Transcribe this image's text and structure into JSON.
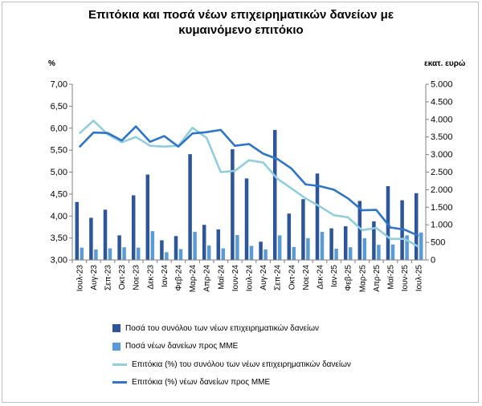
{
  "title_lines": [
    "Επιτόκια και ποσά νέων επιχειρηματικών δανείων με",
    "κυμαινόμενο επιτόκιο"
  ],
  "chart_data": {
    "type": "bar",
    "title": "Επιτόκια και ποσά νέων επιχειρηματικών δανείων με κυμαινόμενο επιτόκιο",
    "left_axis": {
      "unit_label": "%",
      "range": [
        3.0,
        7.0
      ],
      "ticks": [
        "7,00",
        "6,50",
        "6,00",
        "5,50",
        "5,00",
        "4,50",
        "4,00",
        "3,50",
        "3,00"
      ],
      "tick_values": [
        7.0,
        6.5,
        6.0,
        5.5,
        5.0,
        4.5,
        4.0,
        3.5,
        3.0
      ]
    },
    "right_axis": {
      "unit_label": "εκατ. ευρώ",
      "range": [
        0,
        5000
      ],
      "ticks": [
        "5.000",
        "4.500",
        "4.000",
        "3.500",
        "3.000",
        "2.500",
        "2.000",
        "1.500",
        "1.000",
        "500",
        "0"
      ],
      "tick_values": [
        5000,
        4500,
        4000,
        3500,
        3000,
        2500,
        2000,
        1500,
        1000,
        500,
        0
      ]
    },
    "categories": [
      "Ιουλ-23",
      "Αυγ-23",
      "Σεπ-23",
      "Οκτ-23",
      "Νοε-23",
      "Δεκ-23",
      "Ιαν-24",
      "Φεβ-24",
      "Μαρ-24",
      "Απρ-24",
      "Μαϊ-24",
      "Ιουν-24",
      "Ιουλ-24",
      "Αυγ-24",
      "Σεπ-24",
      "Οκτ-24",
      "Νοε-24",
      "Δεκ-24",
      "Ιαν-25",
      "Φεβ-25",
      "Μαρ-25",
      "Απρ-25",
      "Μαϊ-25",
      "Ιουν-25",
      "Ιουλ-25"
    ],
    "x_tick_labels": [
      "Ιουλ-23",
      "Αυγ-23",
      "Σεπ-23",
      "Οκτ-23",
      "Νοε-23",
      "Δεκ-23",
      "Ιαν-24",
      "Φεβ-24",
      "Μαρ-24",
      "Απρ-24",
      "Μαϊ-24",
      "Ιουν-24",
      "Ιουλ-24",
      "Αυγ-24",
      "Σεπ-24",
      "Οκτ-24",
      "Νοε-24",
      "Δεκ-24",
      "Ιαν-25",
      "Φεβ-25",
      "Μαρ-25",
      "Απρ-25",
      "Μαϊ-25",
      "Ιουν-25",
      "Ιουλ-25"
    ],
    "series": [
      {
        "name": "Ποσά του συνόλου των νέων επιχειρηματικών δανείων",
        "kind": "bar",
        "axis": "right",
        "color": "#2e5597",
        "values": [
          1650,
          1200,
          1430,
          700,
          1840,
          2430,
          560,
          680,
          3010,
          1000,
          870,
          3150,
          2320,
          520,
          3700,
          1320,
          1730,
          2460,
          900,
          960,
          1680,
          1100,
          2100,
          1700,
          1900
        ]
      },
      {
        "name": "Ποσά νέων δανείων προς ΜΜΕ",
        "kind": "bar",
        "axis": "right",
        "color": "#5b9bd5",
        "values": [
          350,
          300,
          330,
          360,
          350,
          820,
          220,
          310,
          800,
          410,
          330,
          710,
          400,
          300,
          700,
          370,
          620,
          800,
          320,
          360,
          620,
          430,
          440,
          700,
          780
        ]
      },
      {
        "name": "Επιτόκια (%) του συνόλου των νέων επιχειρηματικών δανείων",
        "kind": "line",
        "axis": "left",
        "color": "#92cddc",
        "values": [
          5.88,
          6.17,
          5.86,
          5.68,
          5.8,
          5.6,
          5.58,
          5.6,
          6.01,
          5.78,
          5.0,
          5.03,
          5.27,
          5.22,
          4.85,
          4.63,
          4.4,
          4.22,
          4.02,
          3.97,
          3.68,
          3.73,
          3.48,
          3.48,
          3.3
        ]
      },
      {
        "name": "Επιτόκια (%) νέων δανείων προς ΜΜΕ",
        "kind": "line",
        "axis": "left",
        "color": "#2e75c8",
        "values": [
          5.57,
          5.9,
          5.89,
          5.72,
          6.04,
          5.69,
          5.82,
          5.58,
          5.88,
          5.91,
          5.96,
          5.6,
          5.64,
          5.42,
          5.3,
          5.08,
          4.72,
          4.68,
          4.6,
          4.4,
          4.13,
          4.14,
          3.74,
          3.69,
          3.55
        ]
      }
    ],
    "legend_position": "bottom",
    "grid": false
  }
}
